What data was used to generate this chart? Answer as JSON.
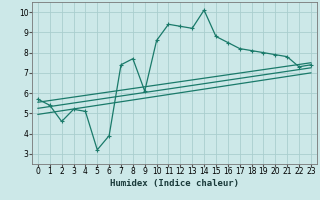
{
  "xlabel": "Humidex (Indice chaleur)",
  "bg_color": "#cce8e8",
  "line_color": "#1a7a6a",
  "grid_color": "#aacece",
  "xlim": [
    -0.5,
    23.5
  ],
  "ylim": [
    2.5,
    10.5
  ],
  "xticks": [
    0,
    1,
    2,
    3,
    4,
    5,
    6,
    7,
    8,
    9,
    10,
    11,
    12,
    13,
    14,
    15,
    16,
    17,
    18,
    19,
    20,
    21,
    22,
    23
  ],
  "yticks": [
    3,
    4,
    5,
    6,
    7,
    8,
    9,
    10
  ],
  "curve1_x": [
    0,
    1,
    2,
    3,
    4,
    5,
    6,
    7,
    8,
    9,
    10,
    11,
    12,
    13,
    14,
    15,
    16,
    17,
    18,
    19,
    20,
    21,
    22,
    23
  ],
  "curve1_y": [
    5.7,
    5.4,
    4.6,
    5.2,
    5.1,
    3.2,
    3.9,
    7.4,
    7.7,
    6.1,
    8.6,
    9.4,
    9.3,
    9.2,
    10.1,
    8.8,
    8.5,
    8.2,
    8.1,
    8.0,
    7.9,
    7.8,
    7.3,
    7.4
  ],
  "curve2_x": [
    0,
    23
  ],
  "curve2_y": [
    5.55,
    7.5
  ],
  "curve3_x": [
    0,
    23
  ],
  "curve3_y": [
    5.25,
    7.25
  ],
  "curve4_x": [
    0,
    23
  ],
  "curve4_y": [
    4.95,
    7.0
  ]
}
